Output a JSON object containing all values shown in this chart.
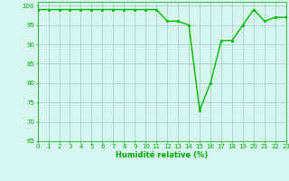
{
  "x": [
    0,
    1,
    2,
    3,
    4,
    5,
    6,
    7,
    8,
    9,
    10,
    11,
    12,
    13,
    14,
    15,
    16,
    17,
    18,
    19,
    20,
    21,
    22,
    23
  ],
  "y": [
    99,
    99,
    99,
    99,
    99,
    99,
    99,
    99,
    99,
    99,
    99,
    99,
    96,
    96,
    95,
    73,
    80,
    91,
    91,
    95,
    99,
    96,
    97,
    97
  ],
  "line_color": "#00bb00",
  "marker": "s",
  "marker_size": 1.8,
  "bg_color": "#d5f5ee",
  "grid_color": "#99ccbb",
  "xlabel": "Humidité relative (%)",
  "xlabel_color": "#00aa00",
  "xlim": [
    0,
    23
  ],
  "ylim": [
    65,
    101
  ],
  "yticks": [
    65,
    70,
    75,
    80,
    85,
    90,
    95,
    100
  ],
  "xticks": [
    0,
    1,
    2,
    3,
    4,
    5,
    6,
    7,
    8,
    9,
    10,
    11,
    12,
    13,
    14,
    15,
    16,
    17,
    18,
    19,
    20,
    21,
    22,
    23
  ],
  "tick_color": "#00aa00",
  "tick_fontsize": 5.0,
  "xlabel_fontsize": 6.0,
  "linewidth": 1.0
}
